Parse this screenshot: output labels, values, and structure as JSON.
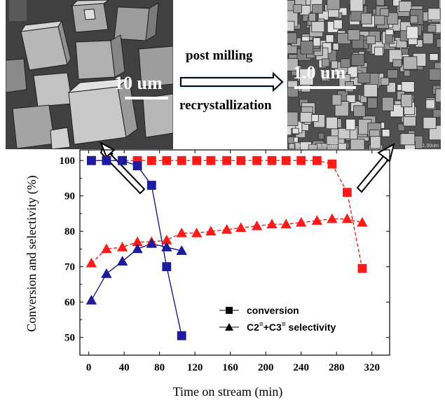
{
  "images": {
    "left": {
      "scale_label": "10 um"
    },
    "right": {
      "scale_label": "1.0 um",
      "footer": "4.7mm x10.0k SE+BSE(U)",
      "footer_right": "1.00um"
    }
  },
  "process": {
    "top_label": "post milling",
    "bottom_label": "recrystallization"
  },
  "colors": {
    "blue": "#1a1a8c",
    "red": "#e8251f",
    "blue_fill": "#1c1c9c",
    "red_fill": "#ff1a1a"
  },
  "chart_data": {
    "type": "line",
    "xlabel": "Time on stream (min)",
    "ylabel": "Conversion and selectivity (%)",
    "xlim": [
      -10,
      340
    ],
    "ylim": [
      45,
      103
    ],
    "xticks": [
      0,
      40,
      80,
      120,
      160,
      200,
      240,
      280,
      320
    ],
    "yticks": [
      50,
      60,
      70,
      80,
      90,
      100
    ],
    "legend": {
      "position": "lower-right",
      "entries": [
        {
          "marker": "square",
          "label": "conversion"
        },
        {
          "marker": "triangle",
          "label": "C2=+C3= selectivity"
        }
      ]
    },
    "series": [
      {
        "sample": "milled-zeolite",
        "metric": "conversion",
        "marker": "square",
        "color": "#1a1a8c",
        "line": "solid",
        "x": [
          3,
          20,
          38,
          55,
          71,
          88,
          105
        ],
        "y": [
          100,
          100,
          100,
          98.5,
          93,
          70,
          50.5
        ]
      },
      {
        "sample": "milled-zeolite",
        "metric": "selectivity",
        "marker": "triangle",
        "color": "#1a1a8c",
        "line": "solid",
        "x": [
          3,
          20,
          38,
          55,
          71,
          88,
          105
        ],
        "y": [
          60.5,
          68,
          71.5,
          75,
          76.5,
          75.5,
          74.5
        ]
      },
      {
        "sample": "recrystallized-zeolite",
        "metric": "conversion",
        "marker": "square",
        "color": "#e8251f",
        "line": "dashed",
        "x": [
          3,
          20,
          38,
          55,
          71,
          88,
          105,
          122,
          138,
          156,
          172,
          190,
          207,
          223,
          240,
          258,
          275,
          292,
          309
        ],
        "y": [
          100,
          100,
          100,
          100,
          100,
          100,
          100,
          100,
          100,
          100,
          100,
          100,
          100,
          100,
          100,
          100,
          99,
          91,
          69.5
        ]
      },
      {
        "sample": "recrystallized-zeolite",
        "metric": "selectivity",
        "marker": "triangle",
        "color": "#e8251f",
        "line": "dashed",
        "x": [
          3,
          20,
          38,
          55,
          71,
          88,
          105,
          122,
          138,
          156,
          172,
          190,
          207,
          223,
          240,
          258,
          275,
          292,
          309
        ],
        "y": [
          71,
          75,
          75.5,
          77,
          77,
          77.5,
          79.5,
          79.5,
          80,
          80.5,
          81,
          81.5,
          82,
          82,
          82.5,
          83,
          83.5,
          83.5,
          82.5
        ]
      }
    ]
  }
}
